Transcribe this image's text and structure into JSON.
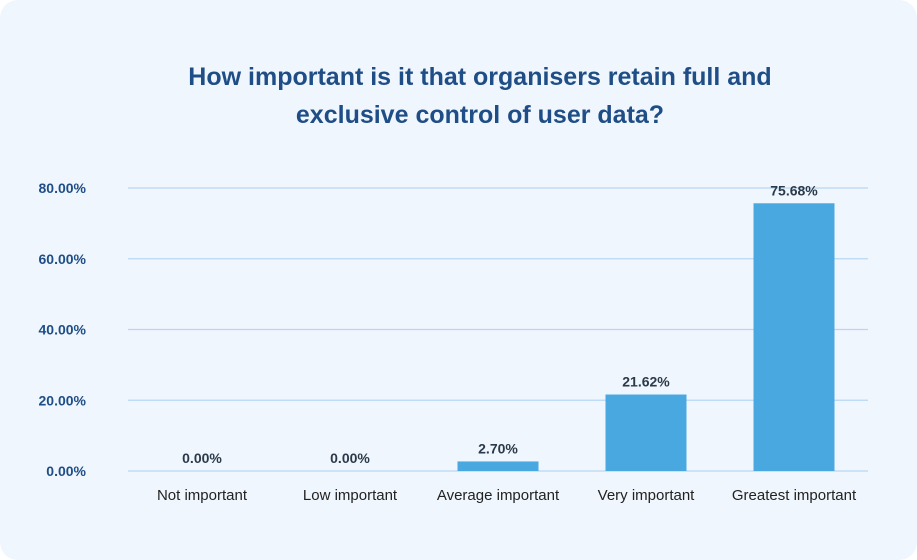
{
  "chart_data": {
    "type": "bar",
    "title_lines": [
      "How important is it that organisers retain full and",
      "exclusive control of user data?"
    ],
    "categories": [
      "Not important",
      "Low important",
      "Average important",
      "Very important",
      "Greatest important"
    ],
    "values": [
      0.0,
      0.0,
      2.7,
      21.62,
      75.68
    ],
    "value_labels": [
      "0.00%",
      "0.00%",
      "2.70%",
      "21.62%",
      "75.68%"
    ],
    "y_ticks": [
      0,
      20,
      40,
      60,
      80
    ],
    "y_tick_labels": [
      "0.00%",
      "20.00%",
      "40.00%",
      "60.00%",
      "80.00%"
    ],
    "ylim": [
      0,
      80
    ],
    "grid": true,
    "legend": "none",
    "bar_color": "#4aa8e0",
    "grid_color": "#b9d7f2",
    "title_color": "#1f4e87"
  }
}
